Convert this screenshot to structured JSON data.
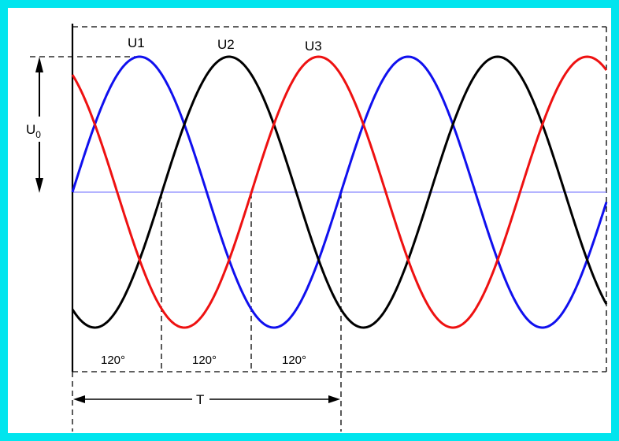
{
  "labels": {
    "u0_main": "U",
    "u0_sub": "0",
    "period": "T",
    "phase_angles": [
      "120°",
      "120°",
      "120°"
    ]
  },
  "waves": [
    {
      "name": "U1",
      "color": "#1010ee",
      "phase_deg": 0
    },
    {
      "name": "U2",
      "color": "#000000",
      "phase_deg": -120
    },
    {
      "name": "U3",
      "color": "#ee1111",
      "phase_deg": 120
    }
  ],
  "colors": {
    "frame": "#00e5ee",
    "axis": "#000000",
    "baseline": "#8888ff"
  },
  "periods_shown": 2
}
